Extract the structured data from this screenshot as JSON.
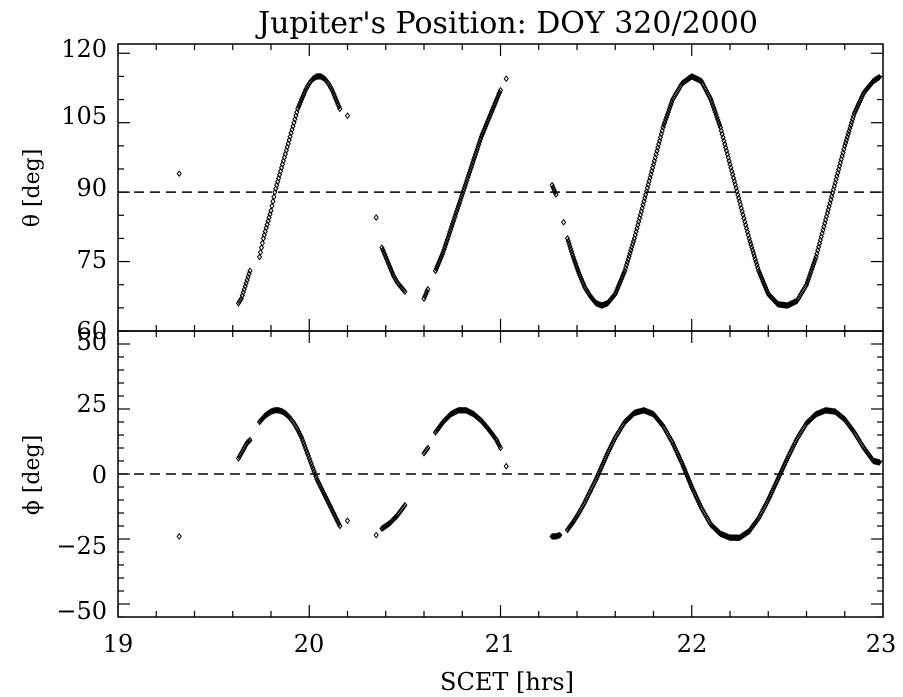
{
  "chart_data": [
    {
      "type": "scatter",
      "title": "Jupiter's Position: DOY 320/2000",
      "ylabel": "θ [deg]",
      "ylim": [
        60,
        120
      ],
      "yticks": [
        "60",
        "75",
        "90",
        "105",
        "120"
      ],
      "ref_line": 90,
      "marker": "open-diamond",
      "series": [
        {
          "segments": [
            {
              "x": [
                19.32
              ],
              "y": [
                94
              ]
            },
            {
              "x": [
                19.63,
                19.645,
                19.66,
                19.675,
                19.69
              ],
              "y": [
                66,
                67,
                69,
                71,
                73
              ]
            },
            {
              "x": [
                19.74,
                19.76,
                19.78,
                19.8,
                19.82,
                19.84,
                19.86,
                19.88,
                19.9,
                19.92,
                19.94,
                19.96,
                19.98,
                20.0,
                20.02,
                20.04,
                20.06,
                20.08,
                20.1,
                20.12,
                20.14,
                20.16
              ],
              "y": [
                76,
                80,
                83,
                86,
                90,
                93,
                96,
                99,
                102,
                105,
                108,
                110,
                112,
                113.5,
                114.5,
                115,
                115,
                114.5,
                113.5,
                112,
                110,
                108
              ]
            },
            {
              "x": [
                20.2
              ],
              "y": [
                106.5
              ]
            },
            {
              "x": [
                20.35
              ],
              "y": [
                84.5
              ]
            },
            {
              "x": [
                20.38,
                20.4,
                20.42,
                20.44,
                20.46,
                20.48,
                20.5
              ],
              "y": [
                78,
                76,
                74,
                72,
                70.5,
                69.5,
                68.5
              ]
            },
            {
              "x": [
                20.6,
                20.62
              ],
              "y": [
                67,
                69
              ]
            },
            {
              "x": [
                20.66,
                20.7,
                20.74,
                20.78,
                20.82,
                20.86,
                20.9,
                20.94,
                20.98,
                21.0
              ],
              "y": [
                73,
                77,
                82,
                87,
                92,
                97,
                102,
                106,
                110,
                112
              ]
            },
            {
              "x": [
                21.03
              ],
              "y": [
                114.5
              ]
            },
            {
              "x": [
                21.27,
                21.29
              ],
              "y": [
                91.5,
                89.5
              ]
            },
            {
              "x": [
                21.33
              ],
              "y": [
                83.5
              ]
            },
            {
              "x": [
                21.35,
                21.38,
                21.41,
                21.44,
                21.47,
                21.5,
                21.53,
                21.56,
                21.6,
                21.65,
                21.7,
                21.75,
                21.8,
                21.85,
                21.9,
                21.95,
                22.0,
                22.05,
                22.1,
                22.15,
                22.2,
                22.25,
                22.3,
                22.35,
                22.4,
                22.45,
                22.5,
                22.55,
                22.6,
                22.65,
                22.7,
                22.75,
                22.8,
                22.85,
                22.9,
                22.95,
                22.98
              ],
              "y": [
                80,
                76,
                72.5,
                69.5,
                67.5,
                66,
                65.5,
                66,
                68,
                73,
                80,
                88,
                96,
                104,
                110,
                113.5,
                115,
                114,
                110,
                104,
                96,
                88,
                80,
                73,
                68,
                65.8,
                65.5,
                66.5,
                70,
                76,
                84,
                92,
                100,
                107,
                111.5,
                114,
                114.8
              ]
            }
          ]
        }
      ]
    },
    {
      "type": "scatter",
      "xlabel": "SCET [hrs]",
      "ylabel": "ϕ [deg]",
      "xlim": [
        19,
        23
      ],
      "ylim": [
        -55,
        55
      ],
      "xticks": [
        "19",
        "20",
        "21",
        "22",
        "23"
      ],
      "yticks": [
        "−50",
        "−25",
        "0",
        "25",
        "50"
      ],
      "ref_line": 0,
      "marker": "open-diamond",
      "series": [
        {
          "segments": [
            {
              "x": [
                19.32
              ],
              "y": [
                -24
              ]
            },
            {
              "x": [
                19.63,
                19.645,
                19.66,
                19.675,
                19.69
              ],
              "y": [
                6,
                8,
                10,
                12,
                13
              ]
            },
            {
              "x": [
                19.74,
                19.77,
                19.8,
                19.82,
                19.84,
                19.86,
                19.88,
                19.9,
                19.92,
                19.94,
                19.96,
                19.98,
                20.0,
                20.02,
                20.04,
                20.06,
                20.08,
                20.1,
                20.12,
                20.14,
                20.16
              ],
              "y": [
                20,
                22.5,
                24,
                24.5,
                24.5,
                24,
                23,
                21.5,
                19.5,
                17,
                14,
                10,
                6,
                2,
                -2,
                -5,
                -8,
                -11,
                -14,
                -17,
                -20
              ]
            },
            {
              "x": [
                20.2
              ],
              "y": [
                -18
              ]
            },
            {
              "x": [
                20.35
              ],
              "y": [
                -23.5
              ]
            },
            {
              "x": [
                20.38,
                20.4,
                20.42,
                20.44,
                20.46,
                20.48,
                20.5
              ],
              "y": [
                -21,
                -20,
                -19,
                -17.5,
                -16,
                -14,
                -12
              ]
            },
            {
              "x": [
                20.6,
                20.62
              ],
              "y": [
                8,
                10
              ]
            },
            {
              "x": [
                20.66,
                20.7,
                20.74,
                20.78,
                20.82,
                20.86,
                20.9,
                20.94,
                20.98,
                21.0
              ],
              "y": [
                16,
                20,
                23,
                24.5,
                24.5,
                23,
                20.5,
                17,
                13,
                10
              ]
            },
            {
              "x": [
                21.03
              ],
              "y": [
                3
              ]
            },
            {
              "x": [
                21.27,
                21.29,
                21.31
              ],
              "y": [
                -24,
                -24,
                -23.5
              ]
            },
            {
              "x": [
                21.35,
                21.38,
                21.41,
                21.44,
                21.47,
                21.5,
                21.53,
                21.56,
                21.6,
                21.65,
                21.7,
                21.75,
                21.8,
                21.85,
                21.9,
                21.95,
                22.0,
                22.05,
                22.1,
                22.15,
                22.2,
                22.25,
                22.3,
                22.35,
                22.4,
                22.45,
                22.5,
                22.55,
                22.6,
                22.65,
                22.7,
                22.75,
                22.8,
                22.85,
                22.9,
                22.95,
                22.98
              ],
              "y": [
                -21.5,
                -18.5,
                -15,
                -11,
                -6.5,
                -2,
                3,
                8,
                14,
                20,
                23.5,
                24.5,
                23,
                18.5,
                12,
                4,
                -5,
                -13,
                -19.5,
                -23,
                -24.5,
                -24.5,
                -22,
                -17,
                -10,
                -2,
                6,
                13.5,
                19.5,
                23,
                24.5,
                24,
                21,
                16,
                10,
                5,
                4.5
              ]
            }
          ]
        }
      ]
    }
  ]
}
